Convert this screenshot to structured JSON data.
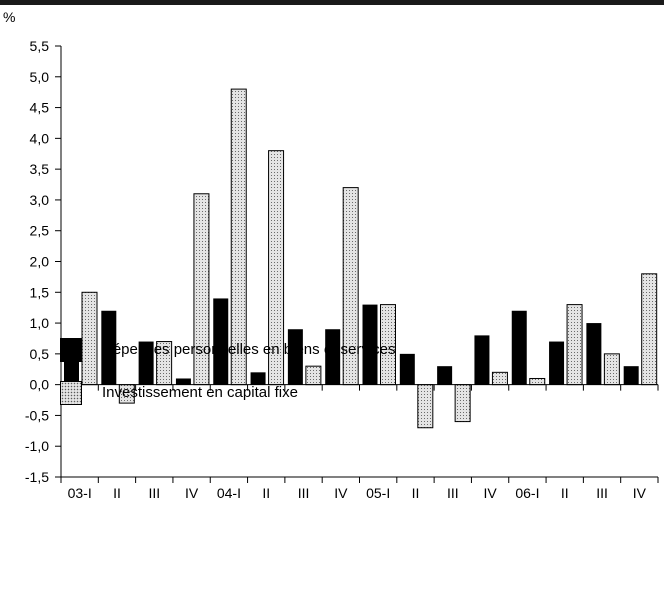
{
  "chart_data": {
    "type": "bar",
    "unit": "%",
    "categories": [
      "03-I",
      "II",
      "III",
      "IV",
      "04-I",
      "II",
      "III",
      "IV",
      "05-I",
      "II",
      "III",
      "IV",
      "06-I",
      "II",
      "III",
      "IV"
    ],
    "series": [
      {
        "name": "Dépenses personnelles en biens et services",
        "color": "#000000",
        "values": [
          0.4,
          1.2,
          0.7,
          0.1,
          1.4,
          0.2,
          0.9,
          0.9,
          1.3,
          0.5,
          0.3,
          0.8,
          1.2,
          0.7,
          1.0,
          0.3
        ]
      },
      {
        "name": "Investissement en capital fixe",
        "color": "#e4e4e4",
        "pattern": "dotted",
        "values": [
          1.5,
          -0.3,
          0.7,
          3.1,
          4.8,
          3.8,
          0.3,
          3.2,
          1.3,
          -0.7,
          -0.6,
          0.2,
          0.1,
          1.3,
          0.5,
          1.8
        ]
      }
    ],
    "ylim": [
      -1.5,
      5.5
    ],
    "yticks": [
      "5,5",
      "5,0",
      "4,5",
      "4,0",
      "3,5",
      "3,0",
      "2,5",
      "2,0",
      "1,5",
      "1,0",
      "0,5",
      "0,0",
      "-0,5",
      "-1,0",
      "-1,5"
    ],
    "ytick_values": [
      5.5,
      5.0,
      4.5,
      4.0,
      3.5,
      3.0,
      2.5,
      2.0,
      1.5,
      1.0,
      0.5,
      0.0,
      -0.5,
      -1.0,
      -1.5
    ],
    "legend_position": "bottom-left",
    "grid": false
  }
}
